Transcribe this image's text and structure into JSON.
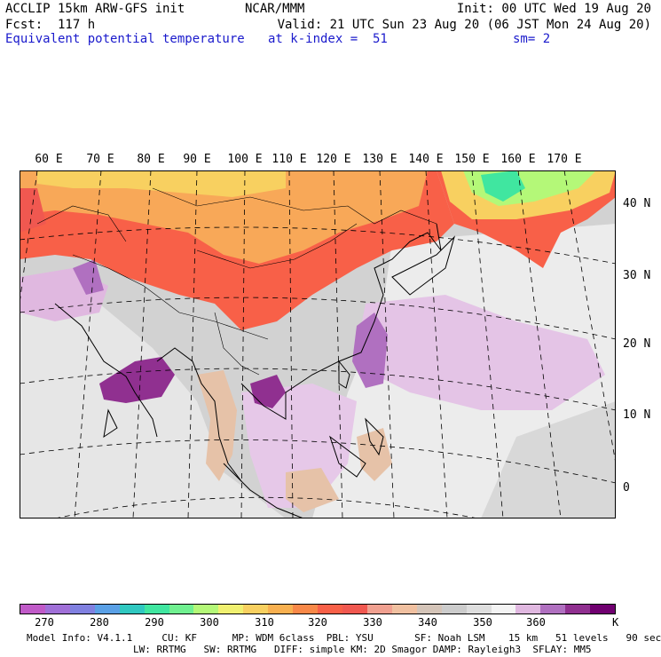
{
  "header": {
    "line1_left": "ACCLIP 15km ARW-GFS init",
    "line1_center": "NCAR/MMM",
    "line1_right": "Init: 00 UTC Wed 19 Aug 20",
    "line2_left": "Fcst:  117 h",
    "line2_right": "Valid: 21 UTC Sun 23 Aug 20 (06 JST Mon 24 Aug 20)",
    "line3_left": "Equivalent potential temperature",
    "line3_center": "at k-index =  51",
    "line3_right": "sm= 2"
  },
  "map": {
    "lon_labels": [
      "60 E",
      "70 E",
      "80 E",
      "90 E",
      "100 E",
      "110 E",
      "120 E",
      "130 E",
      "140 E",
      "150 E",
      "160 E",
      "170 E"
    ],
    "lat_labels": [
      "40 N",
      "30 N",
      "20 N",
      "10 N",
      "0"
    ]
  },
  "colorbar": {
    "colors": [
      "#c05ac8",
      "#a070d8",
      "#8080e0",
      "#5aa0e6",
      "#30c8c0",
      "#40e6a0",
      "#70f090",
      "#b4f878",
      "#f0f070",
      "#f8d060",
      "#f8b050",
      "#f88848",
      "#f86048",
      "#f05850",
      "#f0a090",
      "#f0c0a0",
      "#d4c4b8",
      "#cccccc",
      "#dedede",
      "#f4f4f4",
      "#e0b8e0",
      "#b070c0",
      "#903090",
      "#700070"
    ],
    "ticks": [
      "270",
      "280",
      "290",
      "300",
      "310",
      "320",
      "330",
      "340",
      "350",
      "360"
    ],
    "unit": "K"
  },
  "footer": {
    "line1": "Model Info: V4.1.1     CU: KF      MP: WDM 6class  PBL: YSU       SF: Noah LSM    15 km   51 levels   90 sec",
    "line2": "LW: RRTMG   SW: RRTMG   DIFF: simple KM: 2D Smagor DAMP: Rayleigh3  SFLAY: MM5"
  }
}
